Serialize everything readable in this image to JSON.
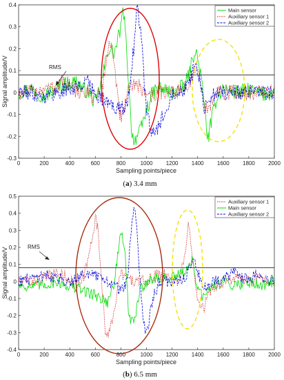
{
  "chart_data": [
    {
      "type": "line",
      "caption_label": "a",
      "caption_text": "3.4 mm",
      "xlabel": "Sampling points/piece",
      "ylabel": "Signal amplitude/V",
      "xlim": [
        0,
        2000
      ],
      "ylim": [
        -0.3,
        0.4
      ],
      "xticks": [
        0,
        200,
        400,
        600,
        800,
        1000,
        1200,
        1400,
        1600,
        1800,
        2000
      ],
      "yticks": [
        -0.3,
        -0.2,
        -0.1,
        0,
        0.1,
        0.2,
        0.3,
        0.4
      ],
      "legend_position": "top-right",
      "rms_label": "RMS",
      "rms_level": 0.08,
      "series": [
        {
          "name": "Main sensor",
          "color": "#00dd00",
          "dash": "solid",
          "x": [
            0,
            100,
            200,
            300,
            380,
            450,
            500,
            550,
            600,
            650,
            700,
            750,
            800,
            820,
            850,
            880,
            900,
            950,
            1000,
            1050,
            1100,
            1200,
            1300,
            1340,
            1380,
            1420,
            1460,
            1480,
            1500,
            1550,
            1600,
            1700,
            1800,
            1900,
            2000
          ],
          "y": [
            0.0,
            0.02,
            -0.02,
            0.02,
            0.04,
            0.05,
            0.02,
            0.0,
            -0.05,
            0.05,
            0.2,
            0.18,
            0.3,
            0.38,
            0.15,
            -0.15,
            -0.22,
            -0.18,
            -0.08,
            0.0,
            0.02,
            0.0,
            0.03,
            0.1,
            0.2,
            0.1,
            -0.1,
            -0.22,
            -0.15,
            -0.02,
            0.02,
            0.0,
            0.01,
            -0.01,
            0.0
          ]
        },
        {
          "name": "Auxiliary sensor 1",
          "color": "#cc0000",
          "dash": "dotted",
          "x": [
            0,
            100,
            200,
            300,
            330,
            400,
            500,
            600,
            650,
            700,
            720,
            750,
            790,
            820,
            850,
            900,
            950,
            1000,
            1050,
            1100,
            1200,
            1300,
            1350,
            1380,
            1420,
            1450,
            1480,
            1500,
            1550,
            1600,
            1700,
            1800,
            1900,
            2000
          ],
          "y": [
            0.0,
            0.0,
            0.02,
            0.02,
            0.06,
            0.02,
            0.0,
            -0.02,
            0.0,
            0.2,
            0.23,
            0.1,
            -0.1,
            -0.12,
            0.0,
            0.05,
            0.02,
            0.0,
            -0.02,
            0.0,
            0.0,
            0.02,
            0.06,
            0.1,
            0.05,
            -0.05,
            -0.1,
            -0.05,
            0.0,
            0.0,
            0.0,
            0.0,
            0.0,
            0.0
          ]
        },
        {
          "name": "Auxiliary sensor 2",
          "color": "#0000dd",
          "dash": "dashed",
          "x": [
            0,
            100,
            200,
            300,
            400,
            500,
            520,
            550,
            600,
            700,
            800,
            850,
            900,
            930,
            960,
            1000,
            1050,
            1100,
            1200,
            1300,
            1350,
            1390,
            1420,
            1450,
            1480,
            1500,
            1550,
            1600,
            1700,
            1800,
            1900,
            2000
          ],
          "y": [
            0.0,
            0.0,
            -0.02,
            0.0,
            0.02,
            0.03,
            0.07,
            0.03,
            0.0,
            -0.05,
            -0.08,
            -0.05,
            0.2,
            0.4,
            0.25,
            -0.1,
            -0.2,
            -0.15,
            0.0,
            0.02,
            0.08,
            0.12,
            0.05,
            -0.08,
            -0.06,
            -0.02,
            0.0,
            0.0,
            0.0,
            0.0,
            0.0,
            0.0
          ]
        }
      ]
    },
    {
      "type": "line",
      "caption_label": "b",
      "caption_text": "6.5 mm",
      "xlabel": "Sampling points/piece",
      "ylabel": "Signal amplitude/V",
      "xlim": [
        0,
        2000
      ],
      "ylim": [
        -0.4,
        0.5
      ],
      "xticks": [
        0,
        200,
        400,
        600,
        800,
        1000,
        1200,
        1400,
        1600,
        1800,
        2000
      ],
      "yticks": [
        -0.4,
        -0.3,
        -0.2,
        -0.1,
        0,
        0.1,
        0.2,
        0.3,
        0.4,
        0.5
      ],
      "legend_position": "top-right",
      "rms_label": "RMS",
      "rms_level": 0.08,
      "series": [
        {
          "name": "Auxiliary sensor 1",
          "color": "#cc0000",
          "dash": "dotted",
          "x": [
            0,
            100,
            200,
            300,
            400,
            450,
            500,
            550,
            600,
            620,
            650,
            680,
            700,
            750,
            800,
            850,
            900,
            950,
            1000,
            1100,
            1200,
            1250,
            1300,
            1330,
            1360,
            1400,
            1450,
            1500,
            1600,
            1700,
            1800,
            1900,
            2000
          ],
          "y": [
            0.0,
            0.0,
            0.02,
            0.05,
            0.02,
            -0.05,
            0.0,
            0.15,
            0.38,
            0.3,
            0.0,
            -0.3,
            -0.34,
            -0.15,
            0.05,
            0.02,
            0.0,
            0.0,
            0.0,
            0.05,
            0.02,
            0.0,
            0.15,
            0.34,
            0.15,
            -0.1,
            -0.15,
            -0.05,
            0.0,
            0.02,
            0.0,
            0.02,
            0.0
          ]
        },
        {
          "name": "Main sensor",
          "color": "#00dd00",
          "dash": "solid",
          "x": [
            0,
            100,
            200,
            300,
            400,
            500,
            600,
            650,
            700,
            750,
            800,
            830,
            860,
            900,
            950,
            1000,
            1100,
            1200,
            1300,
            1330,
            1360,
            1400,
            1450,
            1500,
            1600,
            1700,
            1800,
            1900,
            2000
          ],
          "y": [
            -0.02,
            -0.03,
            -0.02,
            0.0,
            -0.03,
            -0.05,
            -0.08,
            -0.1,
            -0.12,
            0.0,
            0.3,
            0.2,
            -0.2,
            -0.25,
            -0.05,
            0.0,
            0.02,
            0.02,
            0.05,
            0.1,
            0.12,
            -0.05,
            -0.1,
            -0.03,
            0.0,
            -0.02,
            0.0,
            -0.02,
            0.0
          ]
        },
        {
          "name": "Auxiliary sensor 2",
          "color": "#0000dd",
          "dash": "dashed",
          "x": [
            0,
            100,
            200,
            300,
            400,
            500,
            600,
            700,
            800,
            850,
            880,
            910,
            950,
            980,
            1000,
            1050,
            1100,
            1200,
            1300,
            1340,
            1370,
            1400,
            1450,
            1500,
            1600,
            1700,
            1800,
            1850,
            1900,
            2000
          ],
          "y": [
            0.0,
            0.02,
            0.04,
            0.02,
            0.0,
            0.05,
            0.03,
            0.0,
            -0.05,
            0.0,
            0.3,
            0.45,
            0.0,
            -0.25,
            -0.3,
            -0.1,
            0.0,
            0.0,
            0.02,
            0.1,
            0.13,
            0.05,
            -0.05,
            0.0,
            0.02,
            0.05,
            0.0,
            0.05,
            0.02,
            0.0
          ]
        }
      ]
    }
  ]
}
